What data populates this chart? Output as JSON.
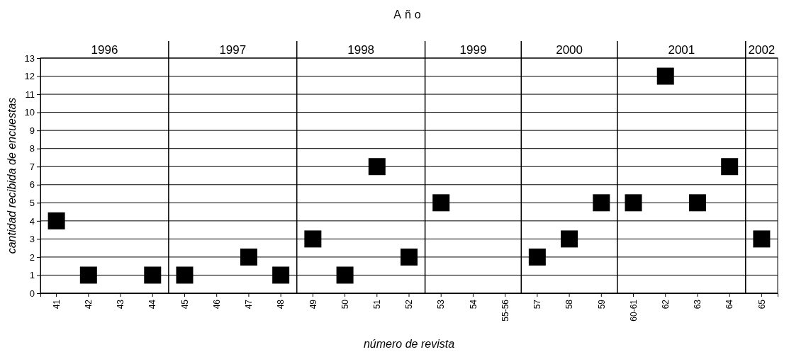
{
  "chart_data": {
    "type": "scatter",
    "title": "Año",
    "xlabel": "número de revista",
    "ylabel": "cantidad recibida de encuestas",
    "categories": [
      "41",
      "42",
      "43",
      "44",
      "45",
      "46",
      "47",
      "48",
      "49",
      "50",
      "51",
      "52",
      "53",
      "54",
      "55-56",
      "57",
      "58",
      "59",
      "60-61",
      "62",
      "63",
      "64",
      "65"
    ],
    "series": [
      {
        "color": "#000000",
        "values": [
          4,
          1,
          null,
          1,
          1,
          null,
          2,
          1,
          3,
          1,
          7,
          2,
          5,
          null,
          null,
          2,
          3,
          5,
          5,
          12,
          5,
          7,
          3
        ]
      }
    ],
    "ylim": [
      0,
      13
    ],
    "yticks": [
      0,
      1,
      2,
      3,
      4,
      5,
      6,
      7,
      8,
      9,
      10,
      11,
      12,
      13
    ],
    "grid": "y",
    "marker": "square",
    "legend": false,
    "annotations": [
      "1996",
      "1997",
      "1998",
      "1999",
      "2000",
      "2001",
      "2002"
    ]
  }
}
